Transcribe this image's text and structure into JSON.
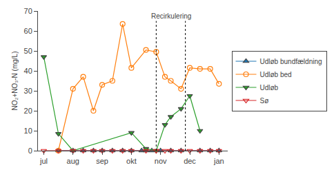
{
  "chart_data": {
    "type": "line",
    "y_label": "NO₂+NO₃-N (mg/L)",
    "xlim": [
      -0.2,
      6.3
    ],
    "xticks": [
      {
        "value": 0,
        "label": "jul"
      },
      {
        "value": 1,
        "label": "aug"
      },
      {
        "value": 2,
        "label": "sep"
      },
      {
        "value": 3,
        "label": "okt"
      },
      {
        "value": 4,
        "label": "nov"
      },
      {
        "value": 5,
        "label": "dec"
      },
      {
        "value": 6,
        "label": "jan"
      }
    ],
    "ylim": [
      0,
      70
    ],
    "yticks": [
      0,
      10,
      20,
      30,
      40,
      50,
      60,
      70
    ],
    "grid": false,
    "legend": "right",
    "vertical_lines": [
      3.85,
      4.85
    ],
    "annotations": [
      {
        "text": "Recirkulering"
      }
    ],
    "series": [
      {
        "name": "Udløb bundfældning",
        "marker": "triangle-up",
        "x": [
          0.5,
          1.0,
          1.35,
          1.7,
          2.0,
          2.35,
          2.7,
          3.0,
          3.35,
          3.5,
          3.7,
          4.0,
          4.35,
          4.7,
          5.35,
          5.7,
          6.0
        ],
        "values": [
          0.0,
          0.0,
          0.0,
          0.0,
          0.0,
          0.0,
          0.0,
          0.0,
          0.0,
          0.0,
          0.0,
          0.0,
          0.0,
          0.0,
          0.0,
          0.0,
          0.0
        ]
      },
      {
        "name": "Udløb bed",
        "marker": "circle-open",
        "x": [
          0.5,
          1.0,
          1.35,
          1.7,
          2.0,
          2.35,
          2.7,
          3.0,
          3.5,
          3.85,
          4.15,
          4.35,
          4.7,
          5.0,
          5.35,
          5.7,
          6.0
        ],
        "values": [
          0.0,
          31.0,
          37.0,
          20.0,
          33.0,
          35.0,
          63.5,
          41.5,
          50.5,
          49.5,
          37.0,
          35.0,
          31.0,
          41.5,
          41.0,
          41.0,
          33.5
        ]
      },
      {
        "name": "Udløb",
        "marker": "triangle-down",
        "x": [
          0.0,
          0.5,
          1.0,
          3.0,
          3.5,
          3.85,
          4.15,
          4.35,
          4.7,
          5.0,
          5.35
        ],
        "values": [
          47.0,
          8.5,
          0.0,
          9.0,
          1.0,
          0.0,
          13.0,
          17.0,
          21.0,
          27.5,
          10.0
        ]
      },
      {
        "name": "Sø",
        "marker": "triangle-down-open",
        "x": [
          0.0,
          0.5,
          1.0,
          1.35,
          1.7,
          2.0,
          2.35,
          2.7,
          3.0,
          3.5,
          3.85,
          4.15,
          4.35,
          4.7,
          5.0,
          5.35,
          5.7,
          6.0
        ],
        "values": [
          0.0,
          0.0,
          0.0,
          0.0,
          0.0,
          0.0,
          0.0,
          0.0,
          0.0,
          0.0,
          0.0,
          0.0,
          0.0,
          0.0,
          0.0,
          0.0,
          0.0,
          0.0
        ]
      }
    ]
  }
}
